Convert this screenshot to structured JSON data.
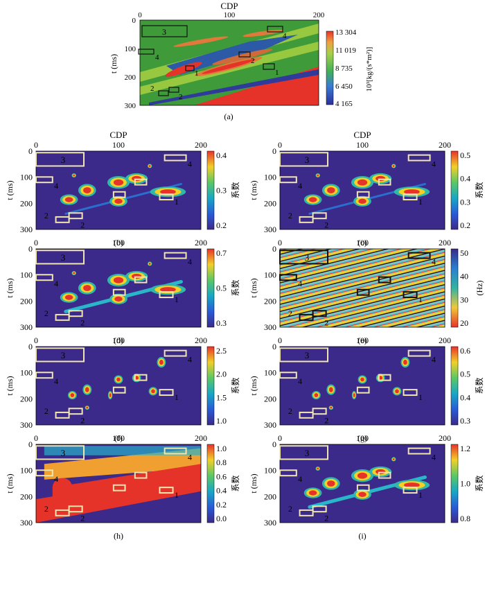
{
  "chart_data": [
    {
      "panel": "a",
      "type": "heatmap",
      "caption": "(a)",
      "xlabel": "CDP",
      "ylabel": "t (ms)",
      "xlim": [
        0,
        200
      ],
      "ylim": [
        300,
        0
      ],
      "xticks": [
        "0",
        "100",
        "200"
      ],
      "yticks": [
        "0",
        "100",
        "200",
        "300"
      ],
      "colorbar": {
        "ticks": [
          "13 304",
          "11 019",
          "8 735",
          "6 450",
          "4 165"
        ],
        "label": "10³[kg/(s*m²)]"
      },
      "annotations": [
        {
          "label": "1",
          "cdp": 37,
          "t": 175
        },
        {
          "label": "1",
          "cdp": 100,
          "t": 173
        },
        {
          "label": "2",
          "cdp": 22,
          "t": 245
        },
        {
          "label": "2",
          "cdp": 30,
          "t": 254
        },
        {
          "label": "2",
          "cdp": 78,
          "t": 120
        },
        {
          "label": "3",
          "cdp": 15,
          "t": 30
        },
        {
          "label": "4",
          "cdp": 10,
          "t": 100
        },
        {
          "label": "4",
          "cdp": 100,
          "t": 35
        }
      ]
    },
    {
      "panel": "b",
      "type": "heatmap",
      "caption": "(b)",
      "xlabel": "CDP",
      "ylabel": "t (ms)",
      "xlim": [
        0,
        200
      ],
      "ylim": [
        300,
        0
      ],
      "xticks": [
        "0",
        "100",
        "200"
      ],
      "yticks": [
        "0",
        "100",
        "200",
        "300"
      ],
      "colorbar": {
        "ticks": [
          "0.4",
          "0.3",
          "0.2"
        ],
        "label": "系数"
      }
    },
    {
      "panel": "c",
      "type": "heatmap",
      "caption": "(c)",
      "xlabel": "CDP",
      "ylabel": "",
      "xlim": [
        0,
        200
      ],
      "ylim": [
        300,
        0
      ],
      "xticks": [
        "0",
        "100",
        "200"
      ],
      "yticks": [
        "0",
        "100",
        "200",
        "300"
      ],
      "colorbar": {
        "ticks": [
          "0.5",
          "0.4",
          "0.3",
          "0.2"
        ],
        "label": "系数"
      }
    },
    {
      "panel": "d",
      "type": "heatmap",
      "caption": "(d)",
      "xlabel": "",
      "ylabel": "t (ms)",
      "xlim": [
        0,
        200
      ],
      "ylim": [
        300,
        0
      ],
      "xticks": [
        "0",
        "100",
        "200"
      ],
      "yticks": [
        "0",
        "100",
        "200",
        "300"
      ],
      "colorbar": {
        "ticks": [
          "0.7",
          "0.5",
          "0.3"
        ],
        "label": "系数"
      }
    },
    {
      "panel": "e",
      "type": "heatmap",
      "caption": "(e)",
      "xlabel": "",
      "ylabel": "",
      "xlim": [
        0,
        200
      ],
      "ylim": [
        300,
        0
      ],
      "xticks": [
        "0",
        "100",
        "200"
      ],
      "yticks": [
        "0",
        "100",
        "200",
        "300"
      ],
      "colorbar": {
        "ticks": [
          "50",
          "40",
          "30",
          "20"
        ],
        "label": "(Hz)"
      }
    },
    {
      "panel": "f",
      "type": "heatmap",
      "caption": "(f)",
      "xlabel": "",
      "ylabel": "t (ms)",
      "xlim": [
        0,
        200
      ],
      "ylim": [
        300,
        0
      ],
      "xticks": [
        "0",
        "100",
        "200"
      ],
      "yticks": [
        "0",
        "100",
        "200",
        "300"
      ],
      "colorbar": {
        "ticks": [
          "2.5",
          "2.0",
          "1.5",
          "1.0"
        ],
        "label": "系数"
      }
    },
    {
      "panel": "g",
      "type": "heatmap",
      "caption": "(g)",
      "xlabel": "",
      "ylabel": "",
      "xlim": [
        0,
        200
      ],
      "ylim": [
        300,
        0
      ],
      "xticks": [
        "0",
        "100",
        "200"
      ],
      "yticks": [
        "0",
        "100",
        "200",
        "300"
      ],
      "colorbar": {
        "ticks": [
          "0.6",
          "0.5",
          "0.4",
          "0.3"
        ],
        "label": "系数"
      }
    },
    {
      "panel": "h",
      "type": "heatmap",
      "caption": "(h)",
      "xlabel": "",
      "ylabel": "t (ms)",
      "xlim": [
        0,
        200
      ],
      "ylim": [
        300,
        0
      ],
      "xticks": [
        "0",
        "100",
        "200"
      ],
      "yticks": [
        "0",
        "100",
        "200",
        "300"
      ],
      "colorbar": {
        "ticks": [
          "1.0",
          "0.8",
          "0.6",
          "0.4",
          "0.2",
          "0.0"
        ],
        "label": "系数"
      }
    },
    {
      "panel": "i",
      "type": "heatmap",
      "caption": "(i)",
      "xlabel": "",
      "ylabel": "",
      "xlim": [
        0,
        200
      ],
      "ylim": [
        300,
        0
      ],
      "xticks": [
        "0",
        "100",
        "200"
      ],
      "yticks": [
        "0",
        "100",
        "200",
        "300"
      ],
      "colorbar": {
        "ticks": [
          "1.2",
          "1.0",
          "0.8"
        ],
        "label": "系数"
      }
    }
  ],
  "colors": {
    "background": "#ffffff",
    "low": "#3b2a8a",
    "high": "#e6332a",
    "box_light": "#f2e6b0",
    "box_dark": "#111111"
  }
}
